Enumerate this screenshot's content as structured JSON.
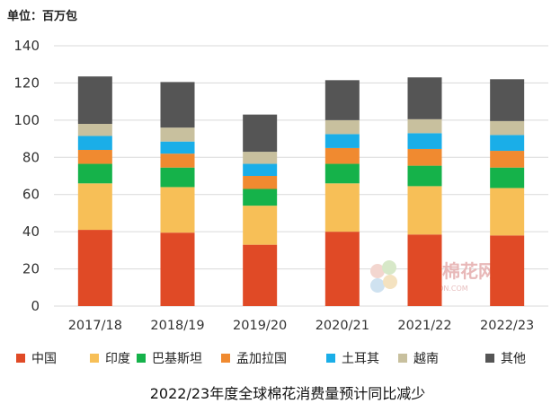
{
  "chart_data": {
    "type": "bar",
    "stacked": true,
    "unit_label": "单位：百万包",
    "categories": [
      "2017/18",
      "2018/19",
      "2019/20",
      "2020/21",
      "2021/22",
      "2022/23"
    ],
    "ylim": [
      0,
      140
    ],
    "yticks": [
      0,
      20,
      40,
      60,
      80,
      100,
      120,
      140
    ],
    "grid": true,
    "legend_position": "bottom",
    "series": [
      {
        "name": "中国",
        "color": "#e04a26",
        "values": [
          41,
          39.5,
          33,
          40,
          38.5,
          38
        ]
      },
      {
        "name": "印度",
        "color": "#f7bf57",
        "values": [
          25,
          24.5,
          21,
          26,
          26,
          25.5
        ]
      },
      {
        "name": "巴基斯坦",
        "color": "#15b24a",
        "values": [
          10.5,
          10.5,
          9,
          10.5,
          11,
          11
        ]
      },
      {
        "name": "孟加拉国",
        "color": "#f08a30",
        "values": [
          7.5,
          7.5,
          7,
          8.5,
          9,
          9
        ]
      },
      {
        "name": "土耳其",
        "color": "#1aaee8",
        "values": [
          7.5,
          6.5,
          6.5,
          7.5,
          8.5,
          8.5
        ]
      },
      {
        "name": "越南",
        "color": "#c8c09e",
        "values": [
          6.5,
          7.5,
          6.5,
          7.5,
          7.5,
          7.5
        ]
      },
      {
        "name": "其他",
        "color": "#555555",
        "values": [
          25.5,
          24.5,
          20,
          21.5,
          22.5,
          22.5
        ]
      }
    ],
    "caption": "2022/23年度全球棉花消费量预计同比减少"
  },
  "watermark": {
    "text": "中国棉花网",
    "sub": "CNCOTTON.COM"
  }
}
